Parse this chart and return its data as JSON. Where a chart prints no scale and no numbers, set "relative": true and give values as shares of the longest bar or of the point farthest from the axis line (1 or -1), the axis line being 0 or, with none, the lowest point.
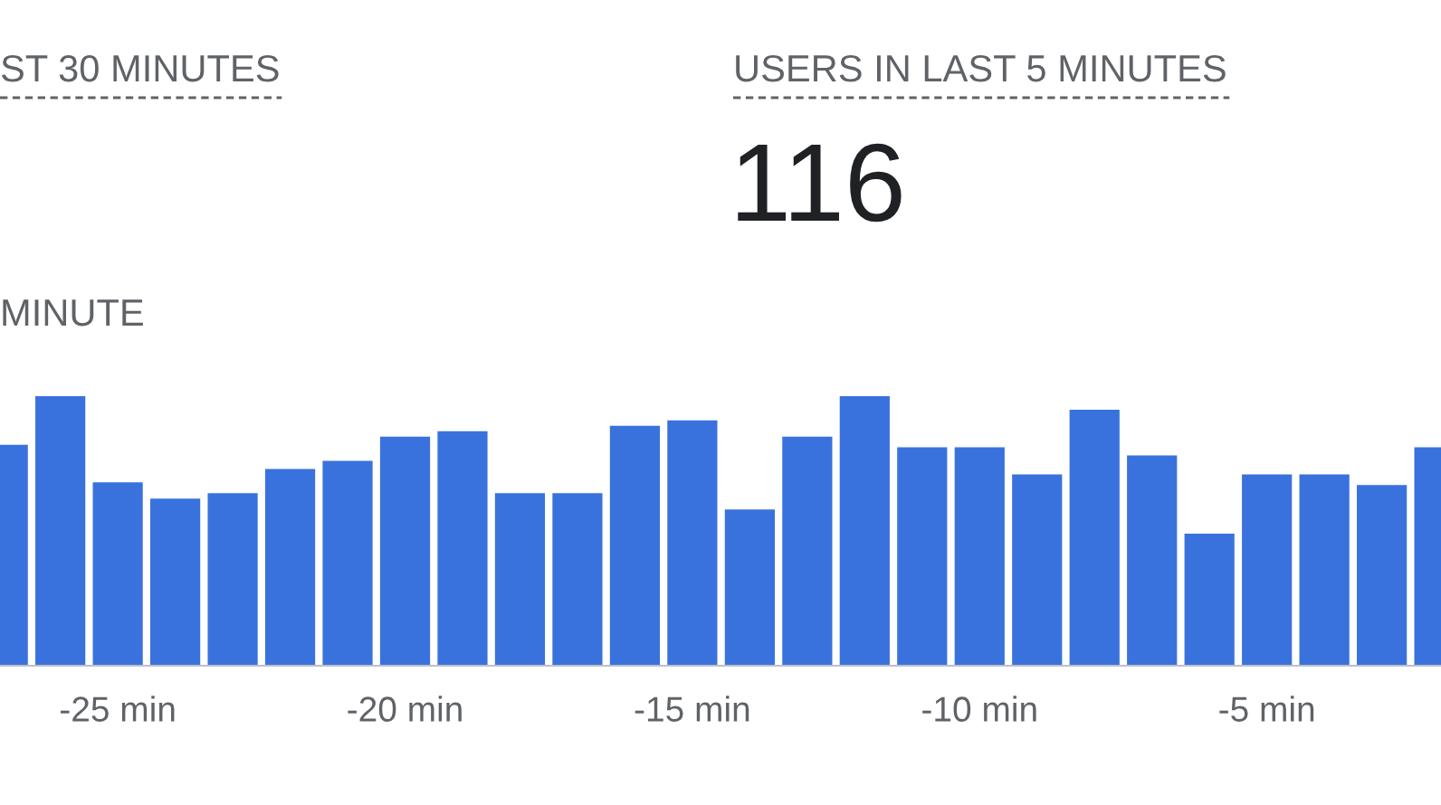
{
  "chart_data": {
    "type": "bar",
    "relative": true,
    "color": "#3a72dd",
    "x": [
      -27,
      -26,
      -25,
      -24,
      -23,
      -22,
      -21,
      -20,
      -19,
      -18,
      -17,
      -16,
      -15,
      -14,
      -13,
      -12,
      -11,
      -10,
      -9,
      -8,
      -7,
      -6,
      -5,
      -4,
      -3,
      -2
    ],
    "values": [
      0.82,
      1,
      0.68,
      0.62,
      0.64,
      0.73,
      0.76,
      0.85,
      0.87,
      0.64,
      0.64,
      0.89,
      0.91,
      0.58,
      0.85,
      1,
      0.81,
      0.81,
      0.71,
      0.95,
      0.78,
      0.49,
      0.71,
      0.71,
      0.67,
      0.81
    ],
    "xlim": [
      -27.05,
      -1.97
    ],
    "xticks": [
      {
        "value": -25,
        "label": "-25 min"
      },
      {
        "value": -20,
        "label": "-20 min"
      },
      {
        "value": -15,
        "label": "-15 min"
      },
      {
        "value": -10,
        "label": "-10 min"
      },
      {
        "value": -5,
        "label": "-5 min"
      }
    ],
    "annotations": [
      "ST 30 MINUTES",
      "USERS IN LAST 5 MINUTES",
      "116",
      "MINUTE"
    ]
  }
}
